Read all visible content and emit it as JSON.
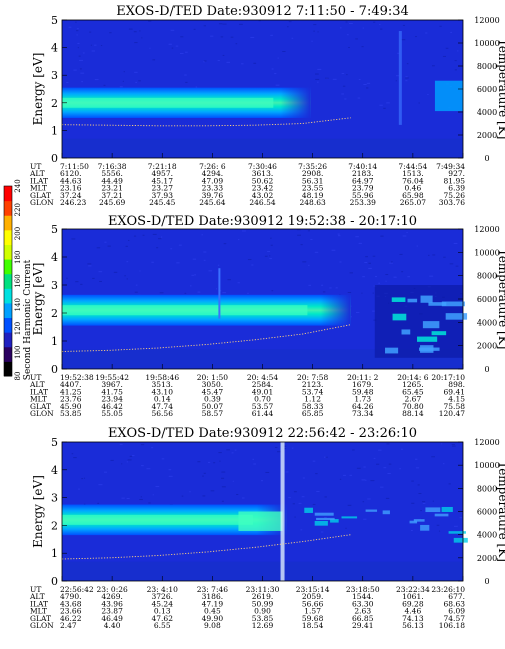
{
  "figure": {
    "colorbar": {
      "label": "Second Harmonic Current",
      "ticks": [
        "80",
        "100",
        "120",
        "140",
        "160",
        "180",
        "200",
        "220",
        "240"
      ],
      "colors": [
        "#000000",
        "#2a0060",
        "#2020c0",
        "#0050ff",
        "#00a0ff",
        "#00e0e0",
        "#00e080",
        "#40ff00",
        "#d0ff00",
        "#ffff00",
        "#ffb000",
        "#ff4000",
        "#ff0000"
      ]
    },
    "row_labels": [
      "UT",
      "ALT",
      "ILAT",
      "MLT",
      "GLAT",
      "GLON"
    ]
  },
  "chart_data": [
    {
      "type": "heatmap",
      "title": "EXOS-D/TED   Date:930912   7:11:50 - 7:49:34",
      "ylabel": "Energy [eV]",
      "y2label": "Temperature [K]",
      "ylim": [
        0,
        5
      ],
      "y2lim": [
        0,
        12000
      ],
      "yticks": [
        "0",
        "1",
        "2",
        "3",
        "4",
        "5"
      ],
      "y2ticks": [
        "0",
        "2000",
        "4000",
        "6000",
        "8000",
        "10000",
        "12000"
      ],
      "band_center_ev": 2.0,
      "temperature_curve_k": [
        2900,
        2850,
        2800,
        2800,
        2850,
        3000,
        3500
      ],
      "columns": [
        {
          "UT": "7:11:50",
          "ALT": "6120.",
          "ILAT": "44.63",
          "MLT": "23.16",
          "GLAT": "37.24",
          "GLON": "246.23"
        },
        {
          "UT": "7:16:38",
          "ALT": "5556.",
          "ILAT": "44.49",
          "MLT": "23.21",
          "GLAT": "37.21",
          "GLON": "245.69"
        },
        {
          "UT": "7:21:18",
          "ALT": "4957.",
          "ILAT": "45.17",
          "MLT": "23.27",
          "GLAT": "37.93",
          "GLON": "245.45"
        },
        {
          "UT": "7:26: 6",
          "ALT": "4294.",
          "ILAT": "47.09",
          "MLT": "23.33",
          "GLAT": "39.76",
          "GLON": "245.64"
        },
        {
          "UT": "7:30:46",
          "ALT": "3613.",
          "ILAT": "50.62",
          "MLT": "23.42",
          "GLAT": "43.02",
          "GLON": "246.54"
        },
        {
          "UT": "7:35:26",
          "ALT": "2908.",
          "ILAT": "56.31",
          "MLT": "23.55",
          "GLAT": "48.19",
          "GLON": "248.63"
        },
        {
          "UT": "7:40:14",
          "ALT": "2183.",
          "ILAT": "64.97",
          "MLT": "23.79",
          "GLAT": "55.96",
          "GLON": "253.39"
        },
        {
          "UT": "7:44:54",
          "ALT": "1513.",
          "ILAT": "76.04",
          "MLT": "0.46",
          "GLAT": "65.98",
          "GLON": "265.07"
        },
        {
          "UT": "7:49:34",
          "ALT": "927.",
          "ILAT": "81.95",
          "MLT": "6.39",
          "GLAT": "75.26",
          "GLON": "303.76"
        }
      ]
    },
    {
      "type": "heatmap",
      "title": "EXOS-D/TED   Date:930912   19:52:38 - 20:17:10",
      "ylabel": "Energy [eV]",
      "y2label": "Temperature [K]",
      "ylim": [
        0,
        5
      ],
      "y2lim": [
        0,
        12000
      ],
      "yticks": [
        "0",
        "1",
        "2",
        "3",
        "4",
        "5"
      ],
      "y2ticks": [
        "0",
        "2000",
        "4000",
        "6000",
        "8000",
        "10000",
        "12000"
      ],
      "band_center_ev": 2.1,
      "temperature_curve_k": [
        1500,
        1600,
        1800,
        2100,
        2500,
        3000,
        3800
      ],
      "columns": [
        {
          "UT": "19:52:38",
          "ALT": "4407.",
          "ILAT": "41.25",
          "MLT": "23.76",
          "GLAT": "45.90",
          "GLON": "53.85"
        },
        {
          "UT": "19:55:42",
          "ALT": "3967.",
          "ILAT": "41.75",
          "MLT": "23.94",
          "GLAT": "46.42",
          "GLON": "55.05"
        },
        {
          "UT": "19:58:46",
          "ALT": "3513.",
          "ILAT": "43.10",
          "MLT": "0.14",
          "GLAT": "47.74",
          "GLON": "56.56"
        },
        {
          "UT": "20: 1:50",
          "ALT": "3050.",
          "ILAT": "45.47",
          "MLT": "0.39",
          "GLAT": "50.07",
          "GLON": "58.57"
        },
        {
          "UT": "20: 4:54",
          "ALT": "2584.",
          "ILAT": "49.01",
          "MLT": "0.70",
          "GLAT": "53.57",
          "GLON": "61.44"
        },
        {
          "UT": "20: 7:58",
          "ALT": "2123.",
          "ILAT": "53.74",
          "MLT": "1.12",
          "GLAT": "58.33",
          "GLON": "65.85"
        },
        {
          "UT": "20:11: 2",
          "ALT": "1679.",
          "ILAT": "59.48",
          "MLT": "1.73",
          "GLAT": "64.26",
          "GLON": "73.34"
        },
        {
          "UT": "20:14: 6",
          "ALT": "1265.",
          "ILAT": "65.45",
          "MLT": "2.67",
          "GLAT": "70.80",
          "GLON": "88.14"
        },
        {
          "UT": "20:17:10",
          "ALT": "898.",
          "ILAT": "69.41",
          "MLT": "4.15",
          "GLAT": "75.58",
          "GLON": "120.47"
        }
      ]
    },
    {
      "type": "heatmap",
      "title": "EXOS-D/TED   Date:930912   22:56:42 - 23:26:10",
      "ylabel": "Energy [eV]",
      "y2label": "Temperature [K]",
      "ylim": [
        0,
        5
      ],
      "y2lim": [
        0,
        12000
      ],
      "yticks": [
        "0",
        "1",
        "2",
        "3",
        "4",
        "5"
      ],
      "y2ticks": [
        "0",
        "2000",
        "4000",
        "6000",
        "8000",
        "10000",
        "12000"
      ],
      "band_center_ev": 2.2,
      "temperature_curve_k": [
        1900,
        2000,
        2200,
        2500,
        2900,
        3400,
        4000
      ],
      "columns": [
        {
          "UT": "22:56:42",
          "ALT": "4790.",
          "ILAT": "43.68",
          "MLT": "23.66",
          "GLAT": "46.22",
          "GLON": "2.47"
        },
        {
          "UT": "23: 0:26",
          "ALT": "4269.",
          "ILAT": "43.96",
          "MLT": "23.87",
          "GLAT": "46.49",
          "GLON": "4.40"
        },
        {
          "UT": "23: 4:10",
          "ALT": "3726.",
          "ILAT": "45.24",
          "MLT": "0.13",
          "GLAT": "47.62",
          "GLON": "6.55"
        },
        {
          "UT": "23: 7:46",
          "ALT": "3186.",
          "ILAT": "47.19",
          "MLT": "0.45",
          "GLAT": "49.90",
          "GLON": "9.08"
        },
        {
          "UT": "23:11:30",
          "ALT": "2619.",
          "ILAT": "50.99",
          "MLT": "0.90",
          "GLAT": "53.85",
          "GLON": "12.69"
        },
        {
          "UT": "23:15:14",
          "ALT": "2059.",
          "ILAT": "56.66",
          "MLT": "1.57",
          "GLAT": "59.68",
          "GLON": "18.54"
        },
        {
          "UT": "23:18:50",
          "ALT": "1544.",
          "ILAT": "63.30",
          "MLT": "2.63",
          "GLAT": "66.85",
          "GLON": "29.41"
        },
        {
          "UT": "23:22:34",
          "ALT": "1061.",
          "ILAT": "69.28",
          "MLT": "4.46",
          "GLAT": "74.13",
          "GLON": "56.13"
        },
        {
          "UT": "23:26:10",
          "ALT": "677.",
          "ILAT": "68.63",
          "MLT": "6.09",
          "GLAT": "74.57",
          "GLON": "106.18"
        }
      ]
    }
  ]
}
